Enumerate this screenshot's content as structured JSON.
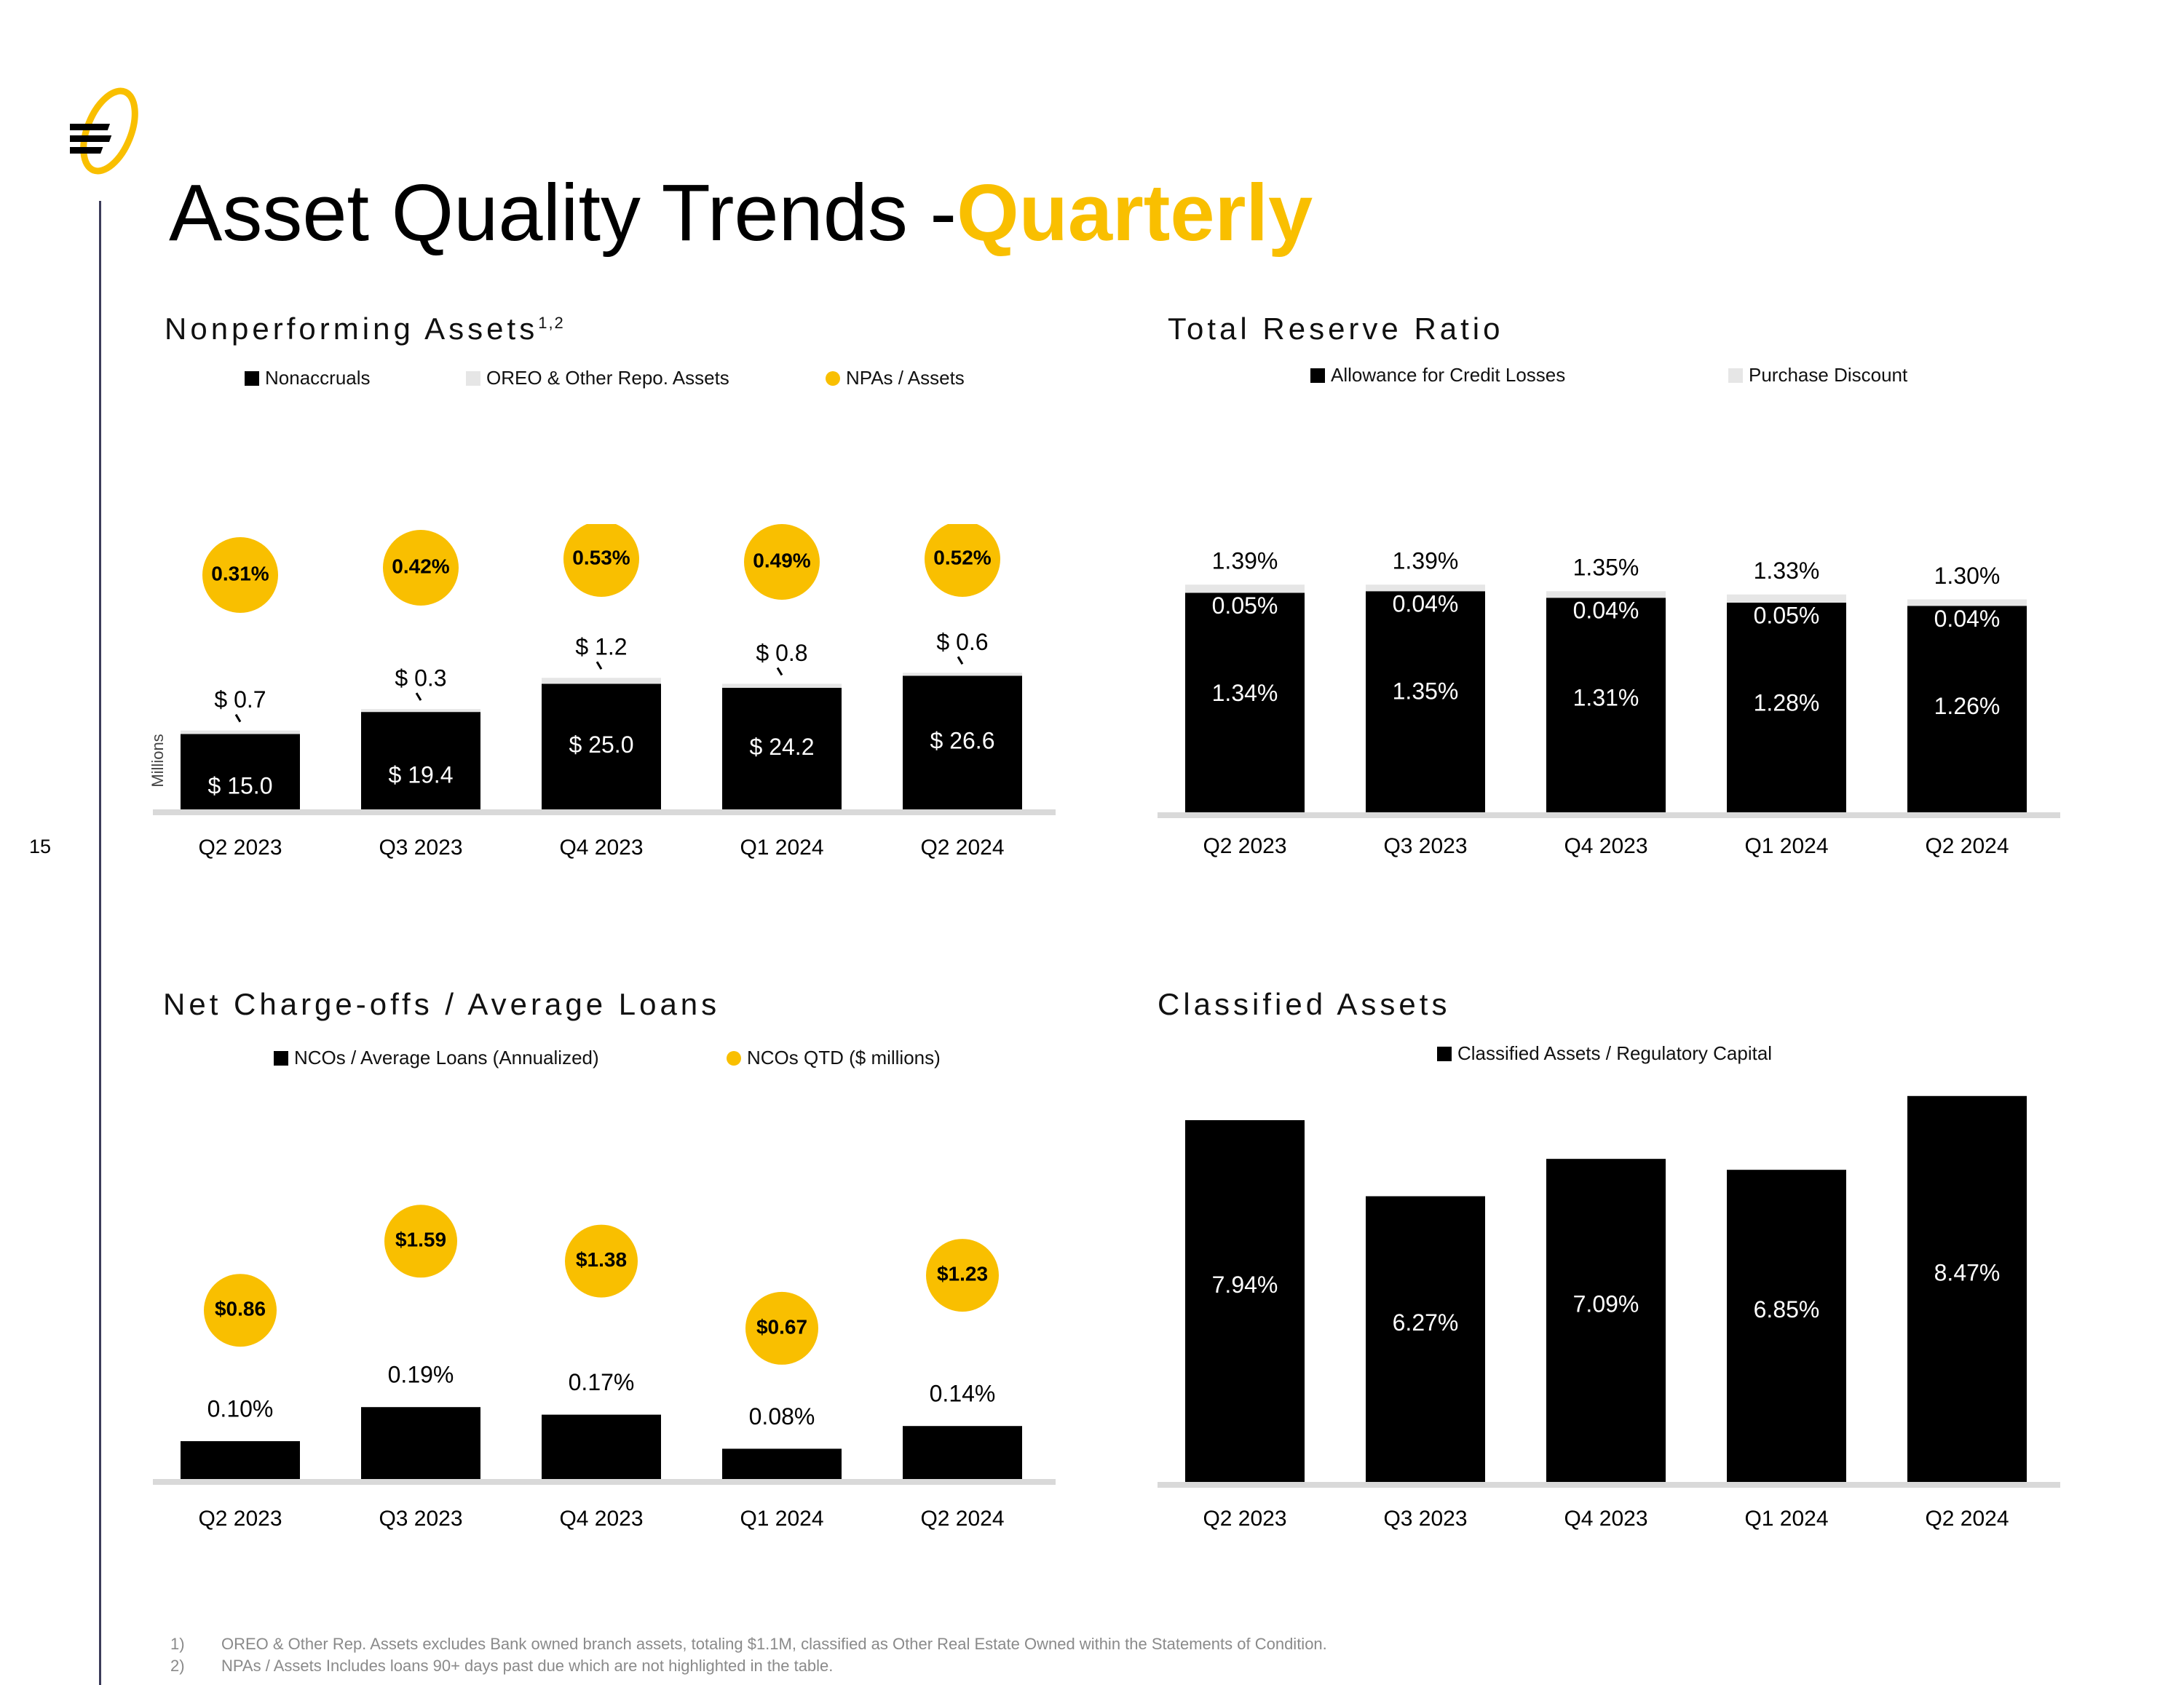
{
  "page": {
    "number": "15",
    "title_main": "Asset Quality Trends -",
    "title_highlight": "Quarterly"
  },
  "icons": {
    "logo": "company-logo-e-swoosh"
  },
  "colors": {
    "accent": "#f9bf00",
    "bar": "#000000",
    "secondary": "#e6e6e6",
    "axis": "#d9d9d9"
  },
  "footnotes": [
    {
      "num": "1)",
      "text": "OREO & Other Rep. Assets excludes Bank owned branch assets, totaling $1.1M, classified as Other Real Estate Owned within the Statements of Condition."
    },
    {
      "num": "2)",
      "text": "NPAs / Assets Includes loans 90+ days past due which are not highlighted in the table."
    }
  ],
  "chart_data": [
    {
      "id": "npa",
      "type": "bar",
      "stacked": true,
      "title": "Nonperforming Assets",
      "title_sup": "1,2",
      "ylabel": "Millions",
      "categories": [
        "Q2 2023",
        "Q3 2023",
        "Q4 2023",
        "Q1 2024",
        "Q2 2024"
      ],
      "series": [
        {
          "name": "Nonaccruals",
          "values": [
            15.0,
            19.4,
            25.0,
            24.2,
            26.6
          ],
          "labels": [
            "$ 15.0",
            "$ 19.4",
            "$ 25.0",
            "$ 24.2",
            "$ 26.6"
          ]
        },
        {
          "name": "OREO & Other Repo. Assets",
          "values": [
            0.7,
            0.3,
            1.2,
            0.8,
            0.6
          ],
          "labels": [
            "$ 0.7",
            "$ 0.3",
            "$ 1.2",
            "$ 0.8",
            "$ 0.6"
          ]
        },
        {
          "name": "NPAs / Assets",
          "values": [
            0.31,
            0.42,
            0.53,
            0.49,
            0.52
          ],
          "labels": [
            "0.31%",
            "0.42%",
            "0.53%",
            "0.49%",
            "0.52%"
          ]
        }
      ],
      "ylim": [
        0,
        30
      ],
      "legend": "top",
      "grid": false
    },
    {
      "id": "reserve",
      "type": "bar",
      "stacked": true,
      "title": "Total Reserve Ratio",
      "categories": [
        "Q2 2023",
        "Q3 2023",
        "Q4 2023",
        "Q1 2024",
        "Q2 2024"
      ],
      "series": [
        {
          "name": "Allowance for Credit Losses",
          "values": [
            1.34,
            1.35,
            1.31,
            1.28,
            1.26
          ],
          "labels": [
            "1.34%",
            "1.35%",
            "1.31%",
            "1.28%",
            "1.26%"
          ]
        },
        {
          "name": "Purchase Discount",
          "values": [
            0.05,
            0.04,
            0.04,
            0.05,
            0.04
          ],
          "labels": [
            "0.05%",
            "0.04%",
            "0.04%",
            "0.05%",
            "0.04%"
          ]
        }
      ],
      "totals": [
        1.39,
        1.39,
        1.35,
        1.33,
        1.3
      ],
      "total_labels": [
        "1.39%",
        "1.39%",
        "1.35%",
        "1.33%",
        "1.30%"
      ],
      "legend": "top",
      "grid": false
    },
    {
      "id": "nco",
      "type": "bar",
      "title": "Net Charge-offs / Average Loans",
      "categories": [
        "Q2 2023",
        "Q3 2023",
        "Q4 2023",
        "Q1 2024",
        "Q2 2024"
      ],
      "series": [
        {
          "name": "NCOs / Average Loans (Annualized)",
          "values": [
            0.1,
            0.19,
            0.17,
            0.08,
            0.14
          ],
          "labels": [
            "0.10%",
            "0.19%",
            "0.17%",
            "0.08%",
            "0.14%"
          ]
        },
        {
          "name": "NCOs QTD ($ millions)",
          "values": [
            0.86,
            1.59,
            1.38,
            0.67,
            1.23
          ],
          "labels": [
            "$0.86",
            "$1.59",
            "$1.38",
            "$0.67",
            "$1.23"
          ]
        }
      ],
      "legend": "top",
      "grid": false
    },
    {
      "id": "classified",
      "type": "bar",
      "title": "Classified Assets",
      "categories": [
        "Q2 2023",
        "Q3 2023",
        "Q4 2023",
        "Q1 2024",
        "Q2 2024"
      ],
      "series": [
        {
          "name": "Classified Assets / Regulatory Capital",
          "values": [
            7.94,
            6.27,
            7.09,
            6.85,
            8.47
          ],
          "labels": [
            "7.94%",
            "6.27%",
            "7.09%",
            "6.85%",
            "8.47%"
          ]
        }
      ],
      "legend": "top",
      "grid": false
    }
  ]
}
